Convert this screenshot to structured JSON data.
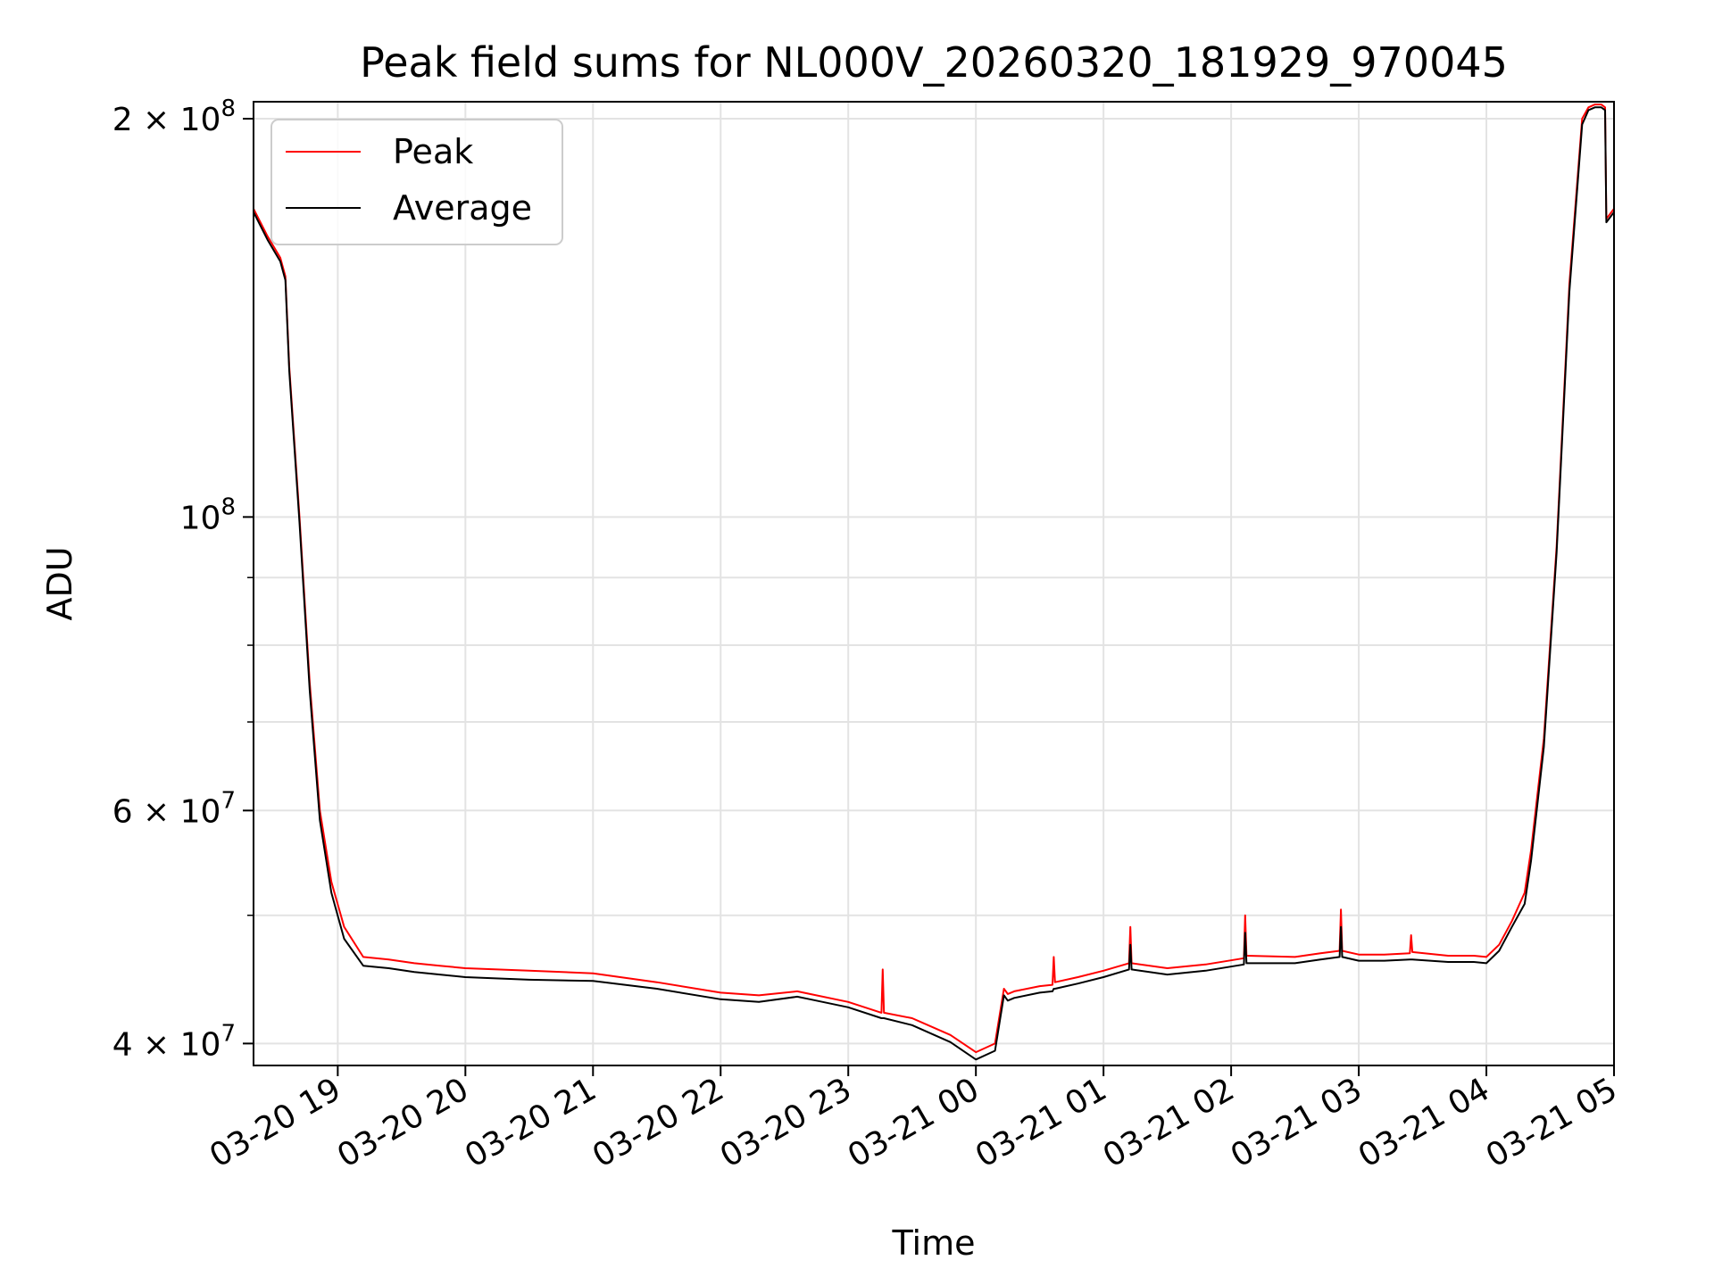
{
  "chart_data": {
    "type": "line",
    "title": "Peak field sums for NL000V_20260320_181929_970045",
    "xlabel": "Time",
    "ylabel": "ADU",
    "yscale": "log",
    "grid": true,
    "legend_position": "top-left",
    "colors": {
      "peak": "#ff0000",
      "average": "#000000",
      "grid": "#e3e3e3"
    },
    "xlim": [
      18.34,
      29.0
    ],
    "ylim": [
      38500000,
      206000000
    ],
    "x_unit": "hours since 2026-03-20 00:00",
    "x_ticks": [
      {
        "value": 19,
        "label": "03-20 19"
      },
      {
        "value": 20,
        "label": "03-20 20"
      },
      {
        "value": 21,
        "label": "03-20 21"
      },
      {
        "value": 22,
        "label": "03-20 22"
      },
      {
        "value": 23,
        "label": "03-20 23"
      },
      {
        "value": 24,
        "label": "03-21 00"
      },
      {
        "value": 25,
        "label": "03-21 01"
      },
      {
        "value": 26,
        "label": "03-21 02"
      },
      {
        "value": 27,
        "label": "03-21 03"
      },
      {
        "value": 28,
        "label": "03-21 04"
      },
      {
        "value": 29,
        "label": "03-21 05"
      }
    ],
    "y_major_ticks": [
      {
        "value": 40000000,
        "mant": "4",
        "exp": "7"
      },
      {
        "value": 60000000,
        "mant": "6",
        "exp": "7"
      },
      {
        "value": 100000000,
        "mant": "",
        "exp": "8"
      },
      {
        "value": 200000000,
        "mant": "2",
        "exp": "8"
      }
    ],
    "y_minor_ticks": [
      50000000,
      70000000,
      80000000,
      90000000
    ],
    "series": [
      {
        "name": "Peak",
        "x": [
          18.34,
          18.45,
          18.55,
          18.59,
          18.62,
          18.7,
          18.78,
          18.86,
          18.95,
          19.05,
          19.2,
          19.4,
          19.6,
          19.8,
          20.0,
          20.5,
          21.0,
          21.5,
          22.0,
          22.3,
          22.6,
          22.7,
          23.0,
          23.26,
          23.27,
          23.28,
          23.5,
          23.8,
          24.0,
          24.15,
          24.22,
          24.25,
          24.3,
          24.5,
          24.6,
          24.61,
          24.62,
          24.8,
          25.0,
          25.2,
          25.21,
          25.22,
          25.5,
          25.8,
          26.1,
          26.11,
          26.12,
          26.5,
          26.7,
          26.85,
          26.86,
          26.87,
          27.0,
          27.2,
          27.4,
          27.41,
          27.42,
          27.7,
          27.9,
          28.0,
          28.1,
          28.2,
          28.3,
          28.35,
          28.45,
          28.55,
          28.65,
          28.75,
          28.8,
          28.85,
          28.9,
          28.93,
          28.94,
          29.0
        ],
        "y": [
          171000000,
          163000000,
          157000000,
          152000000,
          130000000,
          100000000,
          75000000,
          60000000,
          53000000,
          49000000,
          46500000,
          46300000,
          46000000,
          45800000,
          45600000,
          45400000,
          45200000,
          44500000,
          43700000,
          43500000,
          43800000,
          43600000,
          43000000,
          42200000,
          45500000,
          42200000,
          41800000,
          40600000,
          39400000,
          40000000,
          44000000,
          43600000,
          43800000,
          44200000,
          44300000,
          46500000,
          44500000,
          44900000,
          45400000,
          46000000,
          49000000,
          46000000,
          45600000,
          45900000,
          46400000,
          50000000,
          46600000,
          46500000,
          46800000,
          47000000,
          50500000,
          47000000,
          46700000,
          46700000,
          46800000,
          48300000,
          46900000,
          46600000,
          46600000,
          46500000,
          47500000,
          49500000,
          52000000,
          56000000,
          68000000,
          95000000,
          150000000,
          200000000,
          204000000,
          205000000,
          205000000,
          204000000,
          168000000,
          171000000
        ]
      },
      {
        "name": "Average",
        "x": [
          18.34,
          18.45,
          18.55,
          18.59,
          18.62,
          18.7,
          18.78,
          18.86,
          18.95,
          19.05,
          19.2,
          19.4,
          19.6,
          19.8,
          20.0,
          20.5,
          21.0,
          21.5,
          22.0,
          22.3,
          22.6,
          22.7,
          23.0,
          23.26,
          23.27,
          23.28,
          23.5,
          23.8,
          24.0,
          24.15,
          24.22,
          24.25,
          24.3,
          24.5,
          24.6,
          24.61,
          24.62,
          24.8,
          25.0,
          25.2,
          25.21,
          25.22,
          25.5,
          25.8,
          26.1,
          26.11,
          26.12,
          26.5,
          26.7,
          26.85,
          26.86,
          26.87,
          27.0,
          27.2,
          27.4,
          27.41,
          27.42,
          27.7,
          27.9,
          28.0,
          28.1,
          28.2,
          28.3,
          28.35,
          28.45,
          28.55,
          28.65,
          28.75,
          28.8,
          28.85,
          28.9,
          28.93,
          28.94,
          29.0
        ],
        "y": [
          170000000,
          162000000,
          156000000,
          151000000,
          129000000,
          99000000,
          74000000,
          59000000,
          52000000,
          48000000,
          45800000,
          45600000,
          45300000,
          45100000,
          44900000,
          44700000,
          44600000,
          44000000,
          43200000,
          43000000,
          43400000,
          43200000,
          42600000,
          41800000,
          41800000,
          41800000,
          41300000,
          40100000,
          38900000,
          39500000,
          43500000,
          43100000,
          43300000,
          43700000,
          43800000,
          44000000,
          44000000,
          44400000,
          44900000,
          45500000,
          47500000,
          45500000,
          45100000,
          45400000,
          45900000,
          48500000,
          46000000,
          46000000,
          46300000,
          46500000,
          49000000,
          46500000,
          46200000,
          46200000,
          46300000,
          46300000,
          46300000,
          46100000,
          46100000,
          46000000,
          47000000,
          49000000,
          51000000,
          55000000,
          67000000,
          94000000,
          148000000,
          198000000,
          203000000,
          204000000,
          204000000,
          203000000,
          167000000,
          170000000
        ]
      }
    ]
  }
}
